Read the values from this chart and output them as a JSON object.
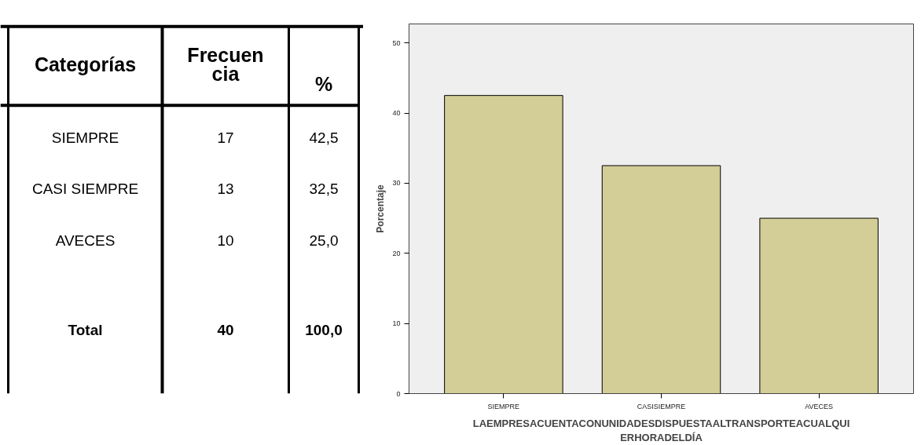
{
  "chart_data": [
    {
      "type": "other",
      "annotations": [
        "Categorías",
        "Frecuen\ncia",
        "%",
        "SIEMPRE",
        "17",
        "42,5",
        "CASI SIEMPRE",
        "13",
        "32,5",
        "AVECES",
        "10",
        "25,0",
        "Total",
        "40",
        "100,0"
      ]
    },
    {
      "type": "bar",
      "categories": [
        "SIEMPRE",
        "CASISIEMPRE",
        "AVECES"
      ],
      "values": [
        42.5,
        32.5,
        25.0
      ],
      "color": "#d3ce97",
      "ylabel": "Porcentaje",
      "xlabel": "LAEMPRESACUENTACONUNIDADESDISPUESTAALTRANSPORTEACUALQUI\nERHORADELDÍA",
      "ylim": [
        0,
        52.7
      ],
      "yticks": [
        0,
        10,
        20,
        30,
        40,
        50
      ],
      "grid": false
    }
  ]
}
